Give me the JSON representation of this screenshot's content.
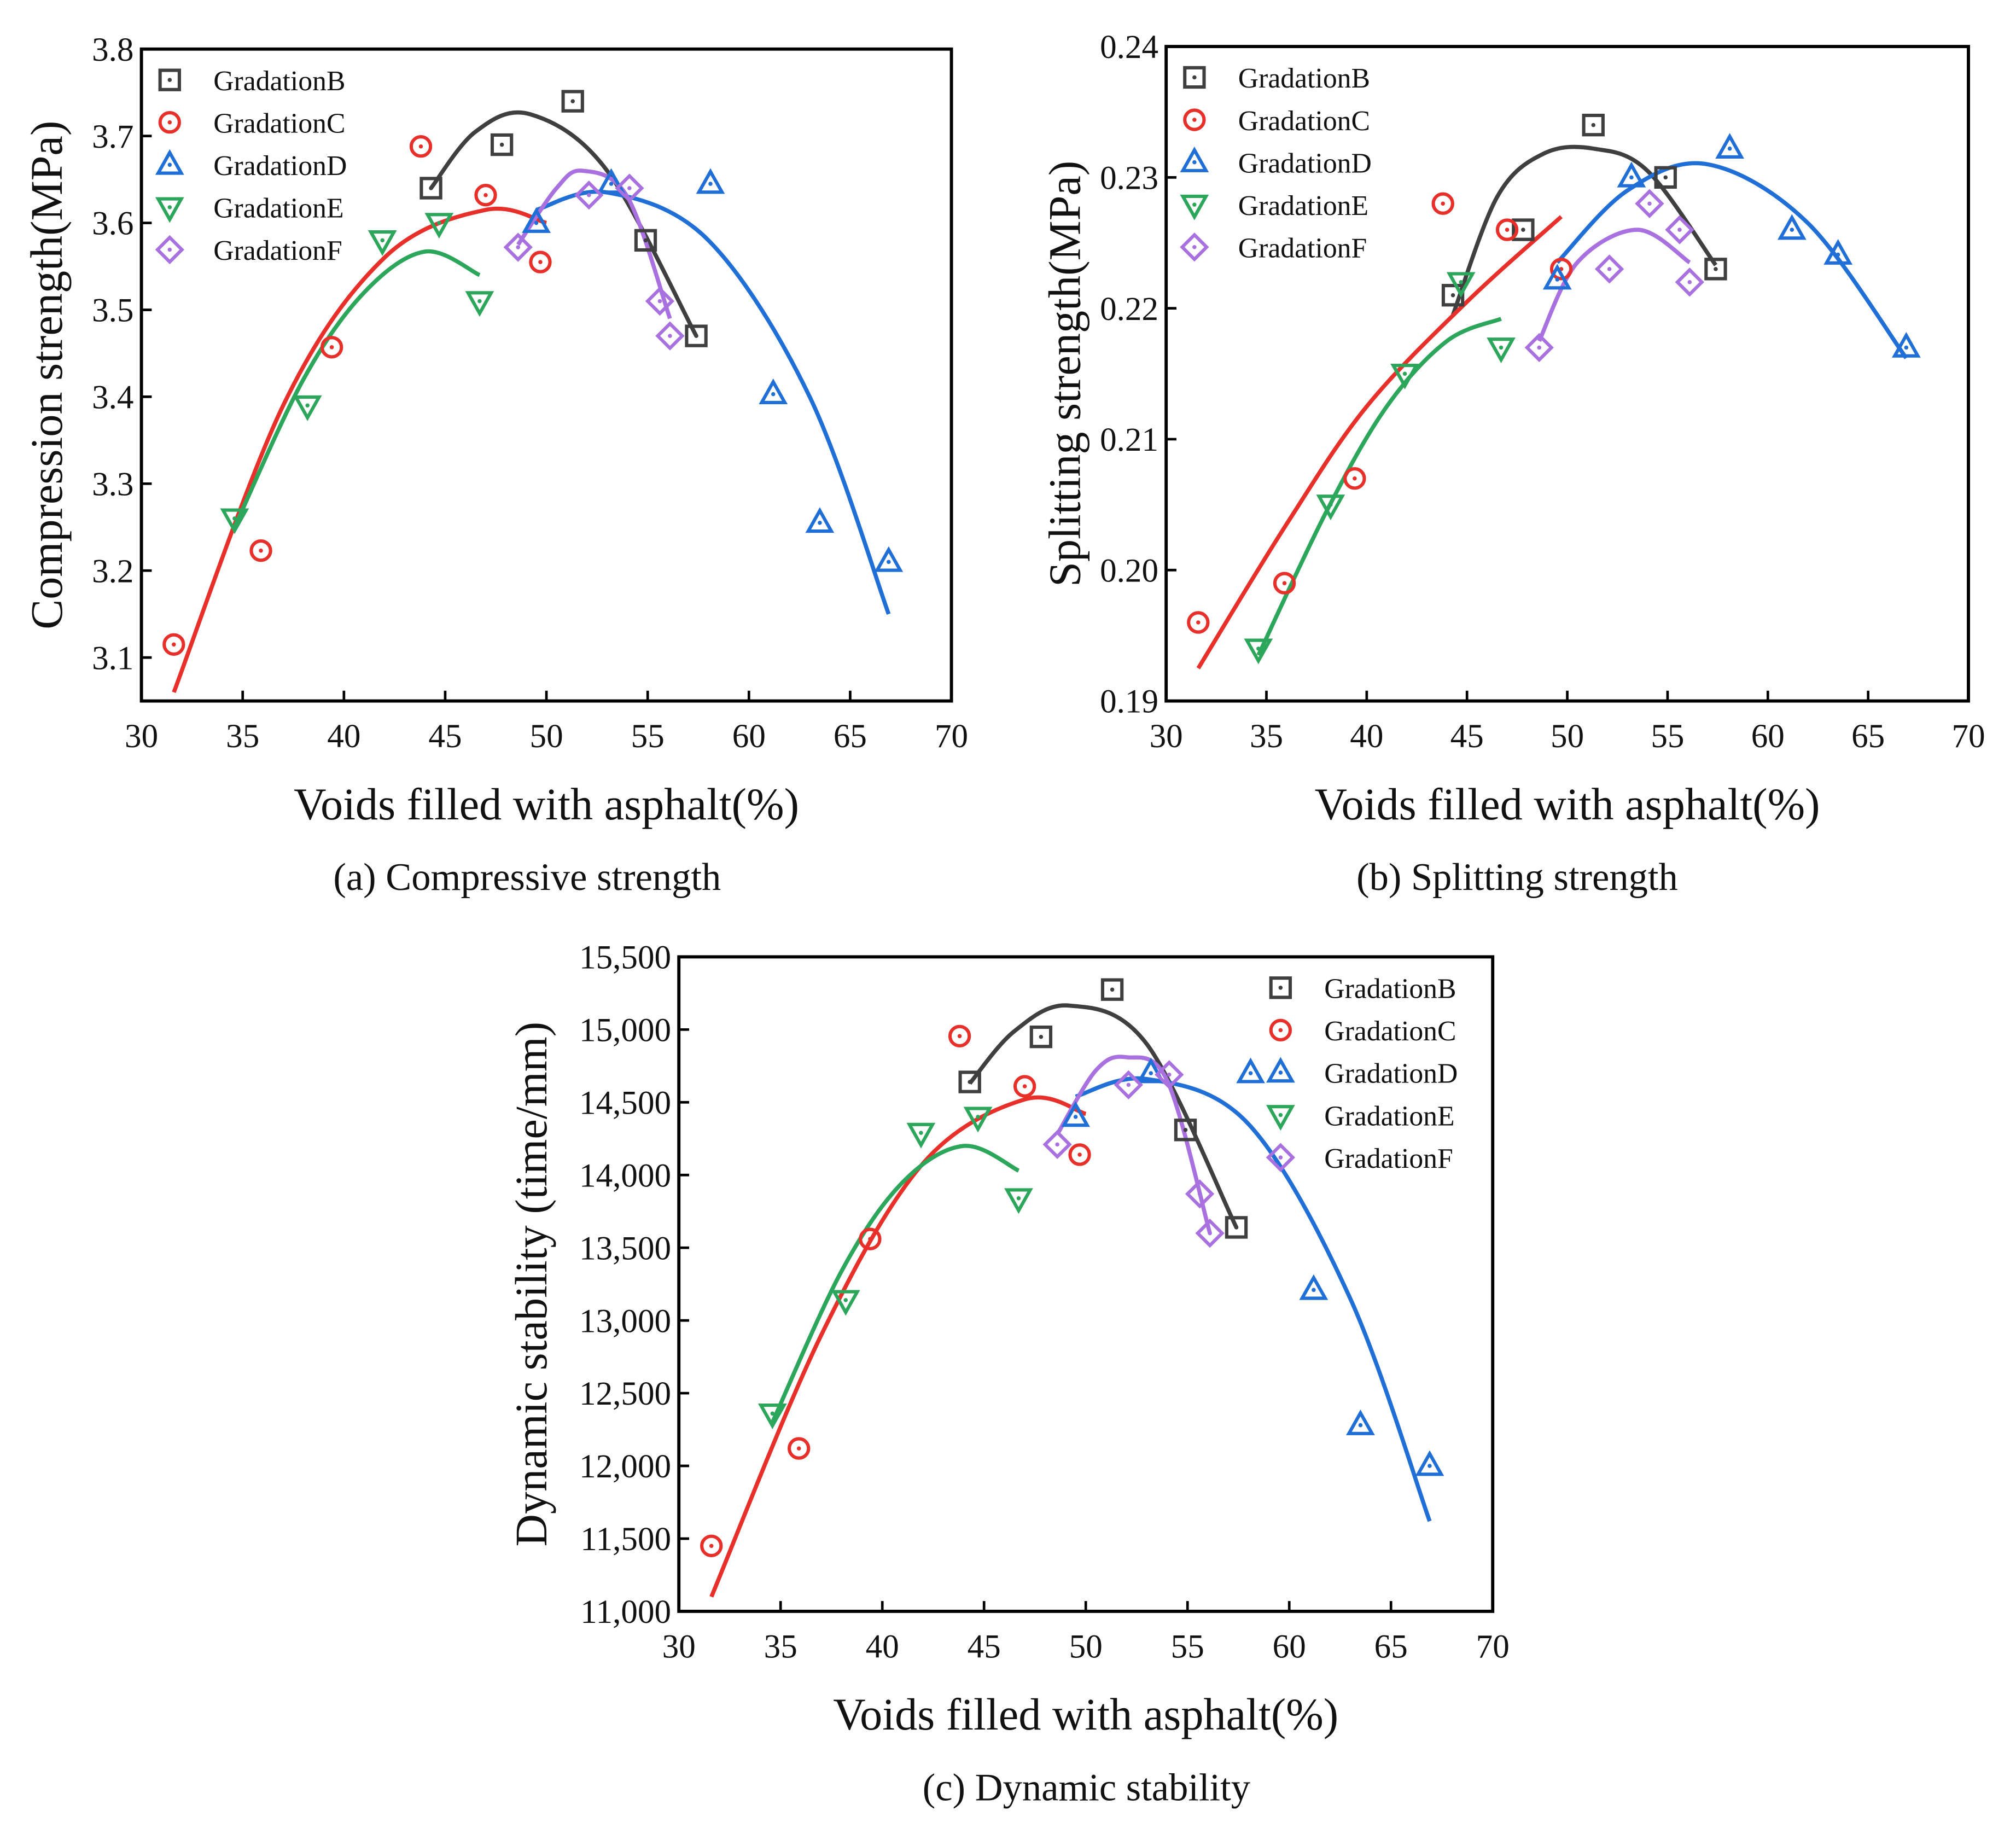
{
  "chart_data": [
    {
      "type": "scatter",
      "caption": "(a) Compressive strength",
      "xlabel": "Voids filled with asphalt(%)",
      "ylabel": "Compression strength(MPa)",
      "xlim": [
        30,
        70
      ],
      "xticks": [
        30,
        35,
        40,
        45,
        50,
        55,
        60,
        65,
        70
      ],
      "ylim": [
        3.05,
        3.8
      ],
      "yticks": [
        3.1,
        3.2,
        3.3,
        3.4,
        3.5,
        3.6,
        3.7,
        3.8
      ],
      "legend_position": "upper left",
      "series": [
        {
          "name": "GradationB",
          "color": "#3f3f3f",
          "marker": "square",
          "x": [
            44.3,
            47.8,
            51.3,
            54.9,
            57.4
          ],
          "values": [
            3.64,
            3.69,
            3.74,
            3.58,
            3.47
          ],
          "fit_x": [
            44.3,
            46.5,
            49.2,
            53,
            57.4
          ],
          "fit_values": [
            3.64,
            3.705,
            3.725,
            3.66,
            3.47
          ]
        },
        {
          "name": "GradationC",
          "color": "#e8302a",
          "marker": "circle",
          "x": [
            31.6,
            35.9,
            39.4,
            43.8,
            47.0,
            49.7
          ],
          "values": [
            3.115,
            3.223,
            3.457,
            3.688,
            3.632,
            3.555
          ],
          "fit_x": [
            31.6,
            37,
            42,
            47,
            50
          ],
          "fit_values": [
            3.06,
            3.39,
            3.56,
            3.615,
            3.6
          ]
        },
        {
          "name": "GradationD",
          "color": "#1f6fd6",
          "marker": "triangle",
          "x": [
            49.5,
            53.2,
            58.1,
            61.2,
            63.5,
            66.9
          ],
          "values": [
            3.6,
            3.645,
            3.645,
            3.403,
            3.255,
            3.21
          ],
          "fit_x": [
            49.5,
            53,
            58,
            63,
            66.9
          ],
          "fit_values": [
            3.615,
            3.635,
            3.58,
            3.4,
            3.15
          ]
        },
        {
          "name": "GradationE",
          "color": "#2ca65a",
          "marker": "triangle-down",
          "x": [
            34.6,
            38.2,
            41.9,
            44.7,
            46.7
          ],
          "values": [
            3.26,
            3.39,
            3.58,
            3.6,
            3.51
          ],
          "fit_x": [
            34.6,
            38,
            41,
            44,
            46.7
          ],
          "fit_values": [
            3.25,
            3.42,
            3.52,
            3.567,
            3.54
          ]
        },
        {
          "name": "GradationF",
          "color": "#a970e0",
          "marker": "diamond",
          "x": [
            48.6,
            52.1,
            54.1,
            55.6,
            56.1
          ],
          "values": [
            3.572,
            3.632,
            3.64,
            3.51,
            3.47
          ],
          "fit_x": [
            48.6,
            50.5,
            51.8,
            54,
            56.1
          ],
          "fit_values": [
            3.575,
            3.64,
            3.66,
            3.63,
            3.49
          ]
        }
      ]
    },
    {
      "type": "scatter",
      "caption": "(b) Splitting strength",
      "xlabel": "Voids filled with asphalt(%)",
      "ylabel": "Splitting strength(MPa)",
      "xlim": [
        30,
        70
      ],
      "xticks": [
        30,
        35,
        40,
        45,
        50,
        55,
        60,
        65,
        70
      ],
      "ylim": [
        0.19,
        0.24
      ],
      "yticks": [
        0.19,
        {
          "value": 0.2,
          "label": "0.20"
        },
        0.21,
        0.22,
        0.23,
        0.24
      ],
      "legend_position": "upper left",
      "series": [
        {
          "name": "GradationB",
          "color": "#3f3f3f",
          "marker": "square",
          "x": [
            44.3,
            47.8,
            51.3,
            54.9,
            57.4
          ],
          "values": [
            0.221,
            0.226,
            0.234,
            0.23,
            0.223
          ],
          "fit_x": [
            44.3,
            46.5,
            48.8,
            51.3,
            54,
            57.4
          ],
          "fit_values": [
            0.2195,
            0.2285,
            0.2318,
            0.2322,
            0.2305,
            0.2233
          ]
        },
        {
          "name": "GradationC",
          "color": "#e8302a",
          "marker": "circle",
          "x": [
            31.6,
            35.9,
            39.4,
            43.8,
            47.0,
            49.7
          ],
          "values": [
            0.196,
            0.199,
            0.207,
            0.228,
            0.226,
            0.223
          ],
          "fit_x": [
            31.6,
            36,
            40,
            45,
            49.7
          ],
          "fit_values": [
            0.1925,
            0.2035,
            0.2125,
            0.2205,
            0.227
          ]
        },
        {
          "name": "GradationD",
          "color": "#1f6fd6",
          "marker": "triangle",
          "x": [
            49.5,
            53.2,
            58.1,
            61.2,
            63.5,
            66.9
          ],
          "values": [
            0.2222,
            0.23,
            0.2322,
            0.226,
            0.2241,
            0.217
          ],
          "fit_x": [
            49.5,
            53,
            57,
            62,
            66.9
          ],
          "fit_values": [
            0.2235,
            0.229,
            0.231,
            0.2265,
            0.2162
          ]
        },
        {
          "name": "GradationE",
          "color": "#2ca65a",
          "marker": "triangle-down",
          "x": [
            34.6,
            38.2,
            41.9,
            44.7,
            46.7
          ],
          "values": [
            0.194,
            0.205,
            0.215,
            0.222,
            0.217
          ],
          "fit_x": [
            34.6,
            38,
            41,
            44,
            46.7
          ],
          "fit_values": [
            0.1935,
            0.2045,
            0.2125,
            0.2175,
            0.2192
          ]
        },
        {
          "name": "GradationF",
          "color": "#a970e0",
          "marker": "diamond",
          "x": [
            48.6,
            52.1,
            54.1,
            55.6,
            56.1
          ],
          "values": [
            0.217,
            0.223,
            0.228,
            0.226,
            0.222
          ],
          "fit_x": [
            48.6,
            50.5,
            53.5,
            56.1
          ],
          "fit_values": [
            0.2175,
            0.2235,
            0.226,
            0.2235
          ]
        }
      ]
    },
    {
      "type": "scatter",
      "caption": "(c) Dynamic stability",
      "xlabel": "Voids filled with asphalt(%)",
      "ylabel": "Dynamic stability (time/mm)",
      "xlim": [
        30,
        70
      ],
      "xticks": [
        30,
        35,
        40,
        45,
        50,
        55,
        60,
        65,
        70
      ],
      "ylim": [
        11000,
        15500
      ],
      "yticks": [
        {
          "value": 11000,
          "label": "11,000"
        },
        {
          "value": 11500,
          "label": "11,500"
        },
        {
          "value": 12000,
          "label": "12,000"
        },
        {
          "value": 12500,
          "label": "12,500"
        },
        {
          "value": 13000,
          "label": "13,000"
        },
        {
          "value": 13500,
          "label": "13,500"
        },
        {
          "value": 14000,
          "label": "14,000"
        },
        {
          "value": 14500,
          "label": "14,500"
        },
        {
          "value": 15000,
          "label": "15,000"
        },
        {
          "value": 15500,
          "label": "15,500"
        }
      ],
      "legend_position": "upper right",
      "series": [
        {
          "name": "GradationB",
          "color": "#3f3f3f",
          "marker": "square",
          "x": [
            44.3,
            47.8,
            51.3,
            54.9,
            57.4
          ],
          "values": [
            14640,
            14950,
            15275,
            14310,
            13640
          ],
          "fit_x": [
            44.3,
            46.5,
            49.2,
            53,
            57.4
          ],
          "fit_values": [
            14630,
            14990,
            15165,
            14900,
            13640
          ]
        },
        {
          "name": "GradationC",
          "color": "#e8302a",
          "marker": "circle",
          "x": [
            31.6,
            35.9,
            39.4,
            43.8,
            47.0,
            49.7
          ],
          "values": [
            11450,
            12120,
            13560,
            14955,
            14610,
            14140
          ],
          "fit_x": [
            31.6,
            37,
            42,
            47,
            50
          ],
          "fit_values": [
            11100,
            12900,
            14080,
            14520,
            14420
          ]
        },
        {
          "name": "GradationD",
          "color": "#1f6fd6",
          "marker": "triangle",
          "x": [
            49.5,
            53.2,
            58.1,
            61.2,
            63.5,
            66.9
          ],
          "values": [
            14400,
            14700,
            14700,
            13210,
            12280,
            12000
          ],
          "fit_x": [
            49.5,
            53,
            58,
            63,
            66.9
          ],
          "fit_values": [
            14540,
            14660,
            14350,
            13150,
            11620
          ]
        },
        {
          "name": "GradationE",
          "color": "#2ca65a",
          "marker": "triangle-down",
          "x": [
            34.6,
            38.2,
            41.9,
            44.7,
            46.7
          ],
          "values": [
            12360,
            13140,
            14290,
            14400,
            13840
          ],
          "fit_x": [
            34.6,
            38,
            41,
            44,
            46.7
          ],
          "fit_values": [
            12300,
            13340,
            13950,
            14200,
            14030
          ]
        },
        {
          "name": "GradationF",
          "color": "#a970e0",
          "marker": "diamond",
          "x": [
            48.6,
            52.1,
            54.1,
            55.6,
            56.1
          ],
          "values": [
            14210,
            14620,
            14690,
            13870,
            13600
          ],
          "fit_x": [
            48.6,
            50.5,
            52,
            54,
            56.1
          ],
          "fit_values": [
            14280,
            14720,
            14810,
            14650,
            13600
          ]
        }
      ]
    }
  ]
}
